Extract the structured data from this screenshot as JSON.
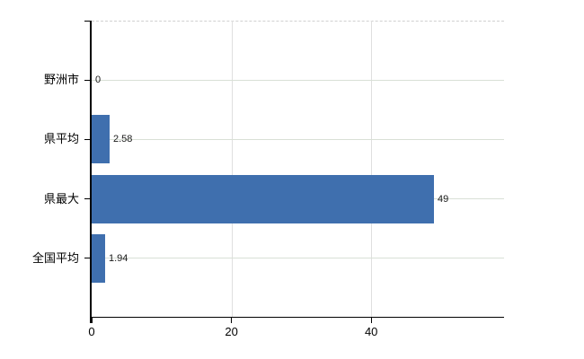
{
  "chart_data": {
    "type": "bar",
    "orientation": "horizontal",
    "categories": [
      "野洲市",
      "県平均",
      "県最大",
      "全国平均"
    ],
    "values": [
      0,
      2.58,
      49,
      1.94
    ],
    "value_labels": [
      "0",
      "2.58",
      "49",
      "1.94"
    ],
    "x_axis": {
      "ticks": [
        0,
        20,
        40
      ],
      "tick_labels": [
        "0",
        "20",
        "40"
      ],
      "min": 0,
      "max": 59
    },
    "grid": {
      "horizontal_lines_at_categories": true,
      "vertical_lines_at_ticks": true,
      "dashed_top_border": true
    },
    "legend": false,
    "colors": {
      "bar": "#3f6fae",
      "h_grid": "#d9e0d6",
      "v_grid": "#dfdfdf",
      "top_border": "#d0d0d0",
      "axis": "#000000",
      "category_text": "#000000",
      "value_text": "#1a1a1a"
    }
  }
}
